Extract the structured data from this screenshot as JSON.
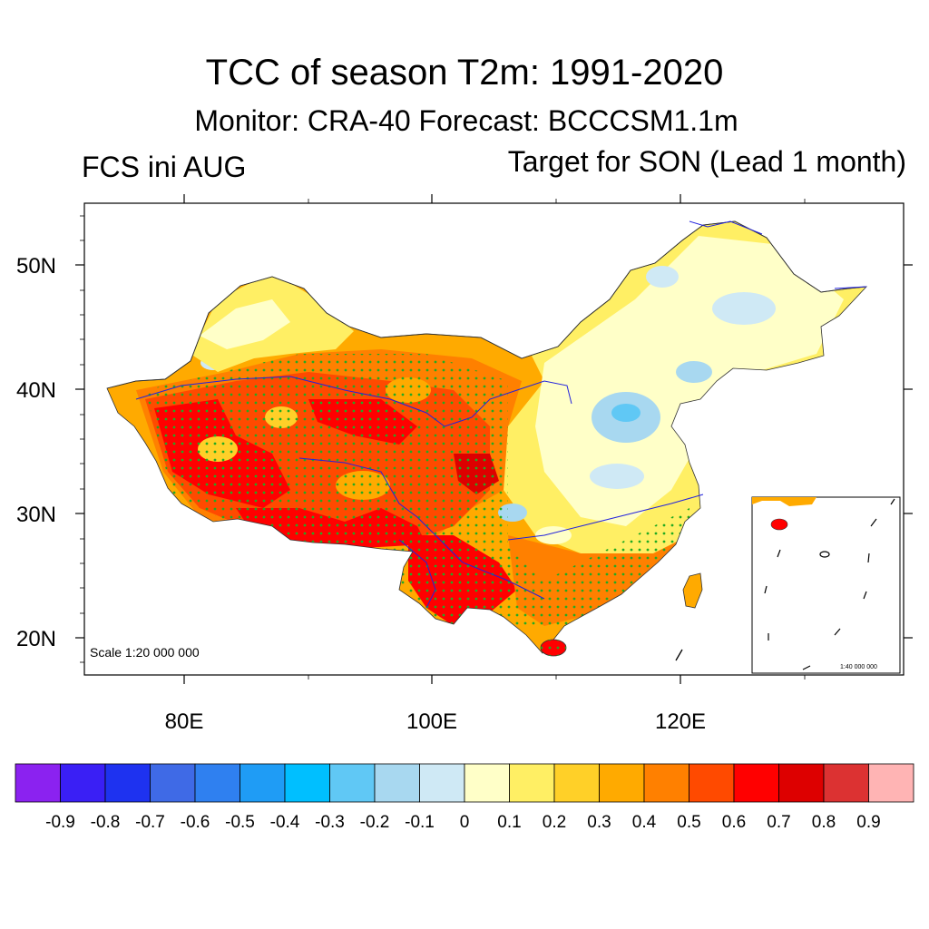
{
  "title": "TCC of season T2m: 1991-2020",
  "subtitle": "Monitor: CRA-40   Forecast: BCCCSM1.1m",
  "left_label": "FCS ini AUG",
  "right_label": "Target for SON (Lead 1 month)",
  "scale_main": "Scale 1:20 000 000",
  "scale_inset": "1:40 000 000",
  "map": {
    "lat_ticks": [
      "50N",
      "40N",
      "30N",
      "20N"
    ],
    "lon_ticks": [
      "80E",
      "100E",
      "120E"
    ]
  },
  "colorbar": {
    "labels": [
      "-0.9",
      "-0.8",
      "-0.7",
      "-0.6",
      "-0.5",
      "-0.4",
      "-0.3",
      "-0.2",
      "-0.1",
      "0",
      "0.1",
      "0.2",
      "0.3",
      "0.4",
      "0.5",
      "0.6",
      "0.7",
      "0.8",
      "0.9"
    ],
    "colors": [
      "#8b22f0",
      "#3a1ff5",
      "#1e32f0",
      "#3f6ae6",
      "#2f80f0",
      "#1f9cf5",
      "#00bfff",
      "#60c8f5",
      "#a8d8f0",
      "#cfe9f5",
      "#ffffc8",
      "#ffef64",
      "#ffd028",
      "#ffaa00",
      "#ff8000",
      "#ff4a00",
      "#ff0000",
      "#dd0000",
      "#dc3232",
      "#ffb4b4"
    ]
  }
}
